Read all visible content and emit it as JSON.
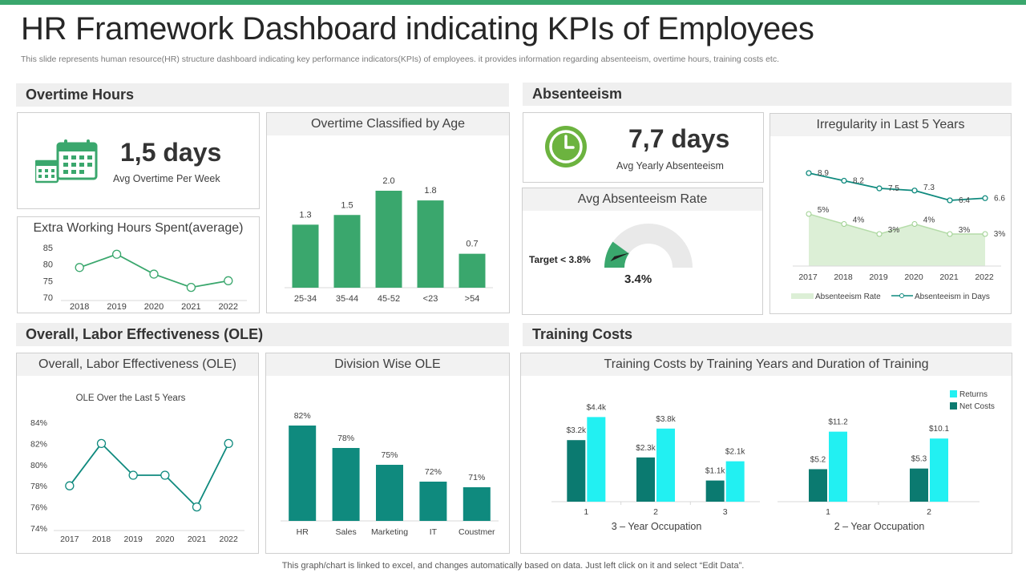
{
  "colors": {
    "accent_green": "#3aa76d",
    "bar_green": "#3aa76d",
    "teal": "#0f8a7e",
    "teal_dark": "#0b7a70",
    "cyan": "#22f0f2",
    "light_green_fill": "#dcefd6",
    "gauge_gray": "#e9e9e9"
  },
  "page": {
    "title": "HR Framework Dashboard indicating KPIs of Employees",
    "subtitle": "This slide represents human resource(HR) structure dashboard indicating key performance indicators(KPIs) of employees. it provides information regarding absenteeism, overtime hours, training costs etc.",
    "footer": "This graph/chart is linked to excel,  and changes automatically based on data. Just left click on it and select “Edit Data”."
  },
  "sections": {
    "overtime": "Overtime Hours",
    "absenteeism": "Absenteeism",
    "ole": "Overall, Labor Effectiveness (OLE)",
    "training": "Training Costs"
  },
  "kpis": {
    "overtime": {
      "value": "1,5 days",
      "label": "Avg Overtime  Per Week",
      "icon": "calendar-icon"
    },
    "absenteeism": {
      "value": "7,7 days",
      "label": "Avg Yearly Absenteeism",
      "icon": "clock-icon"
    }
  },
  "cards": {
    "extra_hours": "Extra  Working Hours Spent(average)",
    "overtime_age": "Overtime  Classified by Age",
    "abs_rate": "Avg Absenteeism Rate",
    "irregularity": "Irregularity  in Last 5 Years",
    "ole": "Overall,  Labor Effectiveness (OLE)",
    "division": "Division Wise OLE",
    "training": "Training Costs by Training Years and Duration of Training"
  },
  "gauge": {
    "target_label": "Target < 3.8%",
    "value_label": "3.4%",
    "value": 3.4,
    "target": 3.8
  },
  "chart_data": [
    {
      "id": "extra_hours",
      "type": "line",
      "title": "Extra  Working Hours Spent(average)",
      "x": [
        "2018",
        "2019",
        "2020",
        "2021",
        "2022"
      ],
      "values": [
        79,
        83,
        77,
        73,
        75
      ],
      "ylim": [
        70,
        85
      ],
      "yticks": [
        "70",
        "75",
        "80",
        "85"
      ]
    },
    {
      "id": "overtime_age",
      "type": "bar",
      "title": "Overtime  Classified by Age",
      "categories": [
        "25-34",
        "35-44",
        "45-52",
        "<23",
        ">54"
      ],
      "values": [
        1.3,
        1.5,
        2.0,
        1.8,
        0.7
      ],
      "labels": [
        "1.3",
        "1.5",
        "2.0",
        "1.8",
        "0.7"
      ]
    },
    {
      "id": "irregularity",
      "type": "line",
      "title": "Irregularity  in Last 5 Years",
      "x": [
        "2017",
        "2018",
        "2019",
        "2020",
        "2021",
        "2022"
      ],
      "series": [
        {
          "name": "Absenteeism in Days",
          "values": [
            8.9,
            8.2,
            7.5,
            7.3,
            6.4,
            6.6
          ],
          "labels": [
            "8.9",
            "8.2",
            "7.5",
            "7.3",
            "6.4",
            "6.6"
          ]
        },
        {
          "name": "Absenteeism Rate",
          "values": [
            5,
            4,
            3,
            4,
            3,
            3
          ],
          "labels": [
            "5%",
            "4%",
            "3%",
            "4%",
            "3%",
            "3%"
          ]
        }
      ],
      "legend": "bottom"
    },
    {
      "id": "ole",
      "type": "line",
      "title": "OLE Over the Last 5 Years",
      "x": [
        "2017",
        "2018",
        "2019",
        "2020",
        "2021",
        "2022"
      ],
      "values": [
        78,
        82,
        79,
        79,
        76,
        82
      ],
      "ylim": [
        74,
        84
      ],
      "yticks": [
        "74%",
        "76%",
        "78%",
        "80%",
        "82%",
        "84%"
      ]
    },
    {
      "id": "division",
      "type": "bar",
      "title": "Division Wise OLE",
      "categories": [
        "HR",
        "Sales",
        "Marketing",
        "IT",
        "Coustmer"
      ],
      "values": [
        82,
        78,
        75,
        72,
        71
      ],
      "labels": [
        "82%",
        "78%",
        "75%",
        "72%",
        "71%"
      ]
    },
    {
      "id": "training_3yr",
      "type": "bar",
      "title": "Training Costs by Training Years and Duration of Training",
      "xlabel": "3 – Year Occupation",
      "categories": [
        "1",
        "2",
        "3"
      ],
      "series": [
        {
          "name": "Net Costs",
          "values": [
            3.2,
            2.3,
            1.1
          ],
          "labels": [
            "$3.2k",
            "$2.3k",
            "$1.1k"
          ]
        },
        {
          "name": "Returns",
          "values": [
            4.4,
            3.8,
            2.1
          ],
          "labels": [
            "$4.4k",
            "$3.8k",
            "$2.1k"
          ]
        }
      ]
    },
    {
      "id": "training_2yr",
      "type": "bar",
      "xlabel": "2 – Year Occupation",
      "categories": [
        "1",
        "2"
      ],
      "series": [
        {
          "name": "Net Costs",
          "values": [
            5.2,
            5.3
          ],
          "labels": [
            "$5.2",
            "$5.3"
          ]
        },
        {
          "name": "Returns",
          "values": [
            11.2,
            10.1
          ],
          "labels": [
            "$11.2",
            "$10.1"
          ]
        }
      ],
      "legend": [
        "Returns",
        "Net Costs"
      ]
    }
  ]
}
